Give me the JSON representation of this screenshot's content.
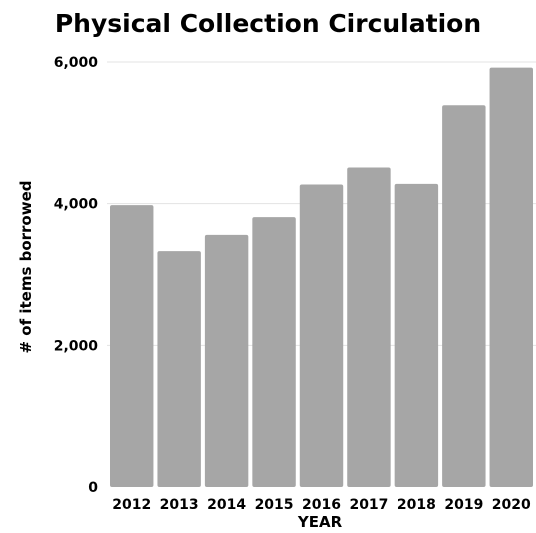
{
  "chart_data": {
    "type": "bar",
    "title": "Physical Collection Circulation",
    "xlabel": "YEAR",
    "ylabel": "# of items borrowed",
    "categories": [
      "2012",
      "2013",
      "2014",
      "2015",
      "2016",
      "2017",
      "2018",
      "2019",
      "2020"
    ],
    "values": [
      3980,
      3330,
      3560,
      3810,
      4270,
      4510,
      4280,
      5390,
      5920
    ],
    "ylim": [
      0,
      6000
    ],
    "yticks": [
      0,
      2000,
      4000,
      6000
    ],
    "ytick_labels": [
      "0",
      "2,000",
      "4,000",
      "6,000"
    ],
    "grid": true,
    "legend": "none",
    "bar_color": "#a6a6a6",
    "grid_color": "#e3e3e3"
  }
}
